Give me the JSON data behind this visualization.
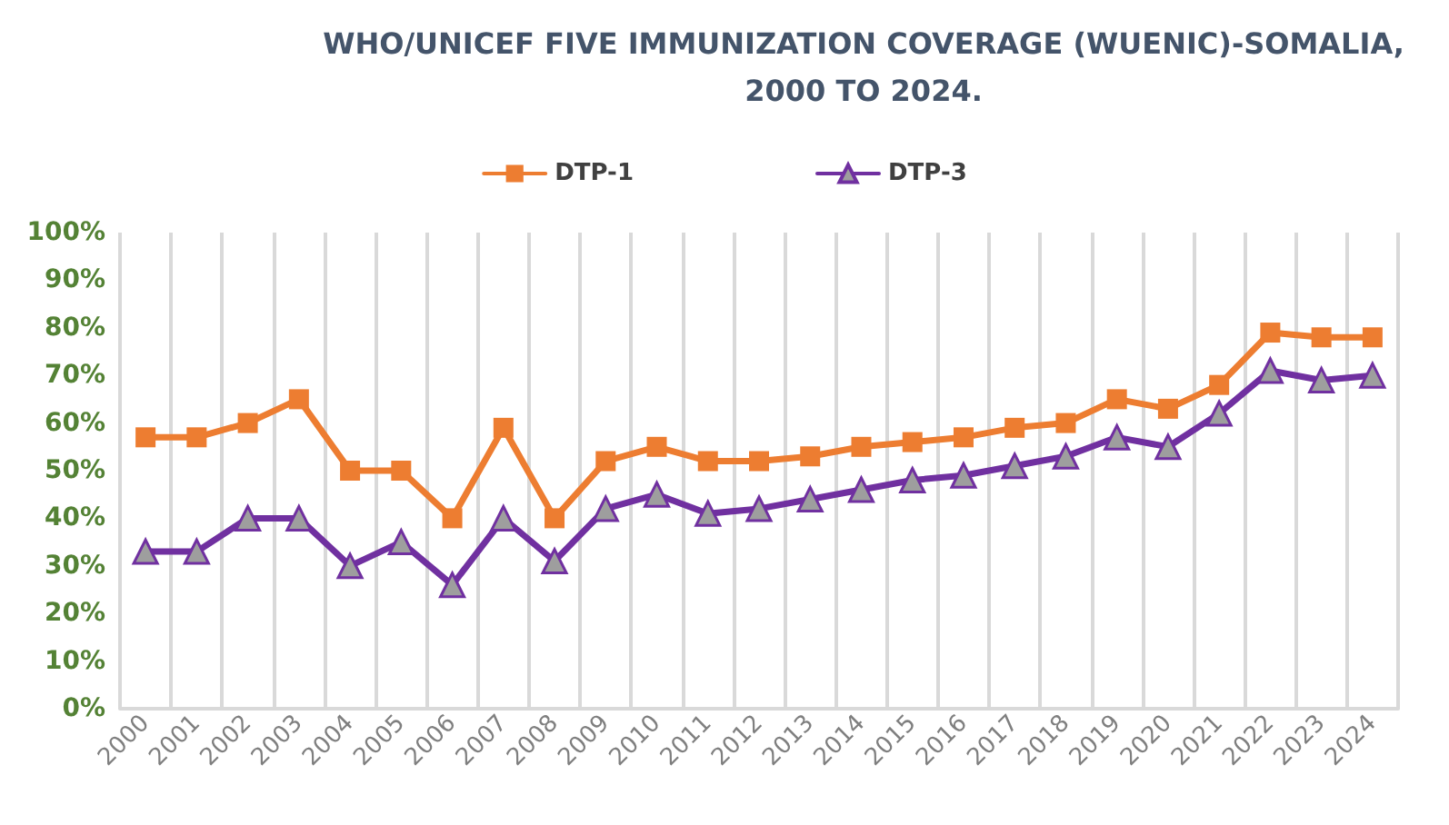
{
  "chart_data": {
    "type": "line",
    "title": "WHO/UNICEF FIVE IMMUNIZATION COVERAGE (WUENIC)-SOMALIA,\n2000 TO 2024.",
    "categories": [
      "2000",
      "2001",
      "2002",
      "2003",
      "2004",
      "2005",
      "2006",
      "2007",
      "2008",
      "2009",
      "2010",
      "2011",
      "2012",
      "2013",
      "2014",
      "2015",
      "2016",
      "2017",
      "2018",
      "2019",
      "2020",
      "2021",
      "2022",
      "2023",
      "2024"
    ],
    "series": [
      {
        "name": "DTP-1",
        "color": "#ed7d31",
        "marker": "square",
        "values": [
          57,
          57,
          60,
          65,
          50,
          50,
          40,
          59,
          40,
          52,
          55,
          52,
          52,
          53,
          55,
          56,
          57,
          59,
          60,
          65,
          63,
          68,
          79,
          78,
          78
        ]
      },
      {
        "name": "DTP-3",
        "color": "#7030a0",
        "marker": "triangle",
        "values": [
          33,
          33,
          40,
          40,
          30,
          35,
          26,
          40,
          31,
          42,
          45,
          41,
          42,
          44,
          46,
          48,
          49,
          51,
          53,
          57,
          55,
          62,
          71,
          69,
          70
        ]
      }
    ],
    "ylim": [
      0,
      100
    ],
    "yticks": [
      {
        "value": 0,
        "label": "0%"
      },
      {
        "value": 10,
        "label": "10%"
      },
      {
        "value": 20,
        "label": "20%"
      },
      {
        "value": 30,
        "label": "30%"
      },
      {
        "value": 40,
        "label": "40%"
      },
      {
        "value": 50,
        "label": "50%"
      },
      {
        "value": 60,
        "label": "60%"
      },
      {
        "value": 70,
        "label": "70%"
      },
      {
        "value": 80,
        "label": "80%"
      },
      {
        "value": 90,
        "label": "90%"
      },
      {
        "value": 100,
        "label": "100%"
      }
    ],
    "grid": "x",
    "legend": "top",
    "line_style": "solid"
  }
}
